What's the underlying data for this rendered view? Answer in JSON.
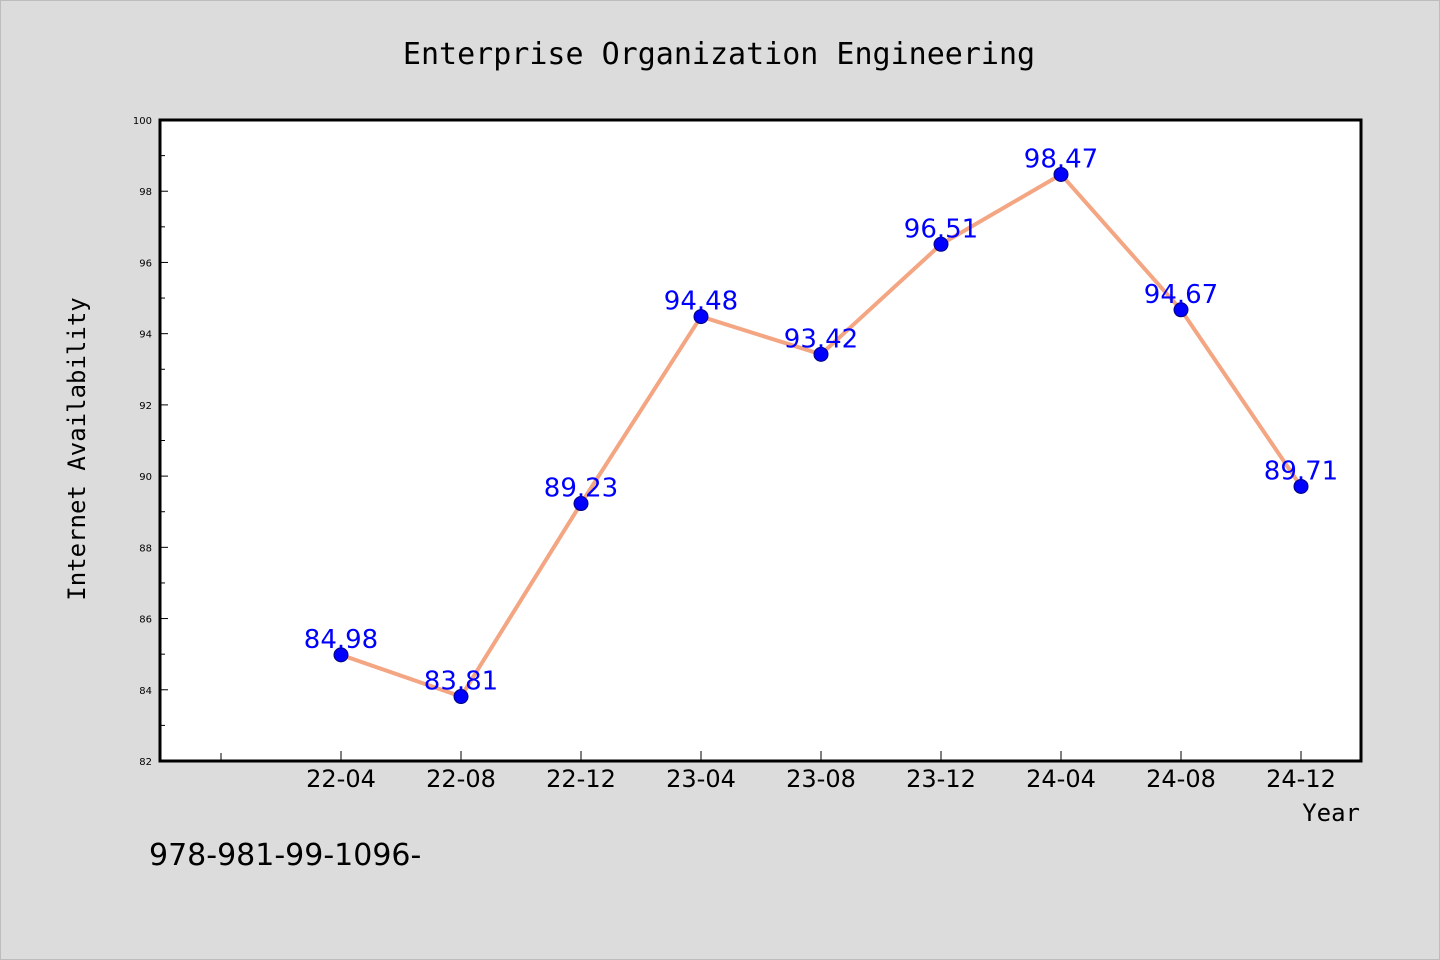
{
  "chart_data": {
    "type": "line",
    "title": "Enterprise Organization Engineering",
    "xlabel": "Year",
    "ylabel": "Internet Availability",
    "categories": [
      "22-04",
      "22-08",
      "22-12",
      "23-04",
      "23-08",
      "23-12",
      "24-04",
      "24-08",
      "24-12"
    ],
    "series": [
      {
        "values": [
          84.98,
          83.81,
          89.23,
          94.48,
          93.42,
          96.51,
          98.47,
          94.67,
          89.71
        ]
      }
    ],
    "data_labels": [
      "84.98",
      "83.81",
      "89.23",
      "94.48",
      "93.42",
      "96.51",
      "98.47",
      "94.67",
      "89.71"
    ],
    "yticks": [
      82,
      84,
      86,
      88,
      90,
      92,
      94,
      96,
      98,
      100
    ],
    "ytick_labels": [
      "82",
      "84",
      "86",
      "88",
      "90",
      "92",
      "94",
      "96",
      "98",
      "100"
    ],
    "ylim": [
      82,
      100
    ],
    "grid": false,
    "legend": "none",
    "colors": {
      "line": "#f4a582",
      "marker": "#0000ff",
      "data_label": "#0000ff",
      "plot_background": "#ffffff",
      "figure_background": "#dcdcdc"
    }
  },
  "footnote": "978-981-99-1096-"
}
